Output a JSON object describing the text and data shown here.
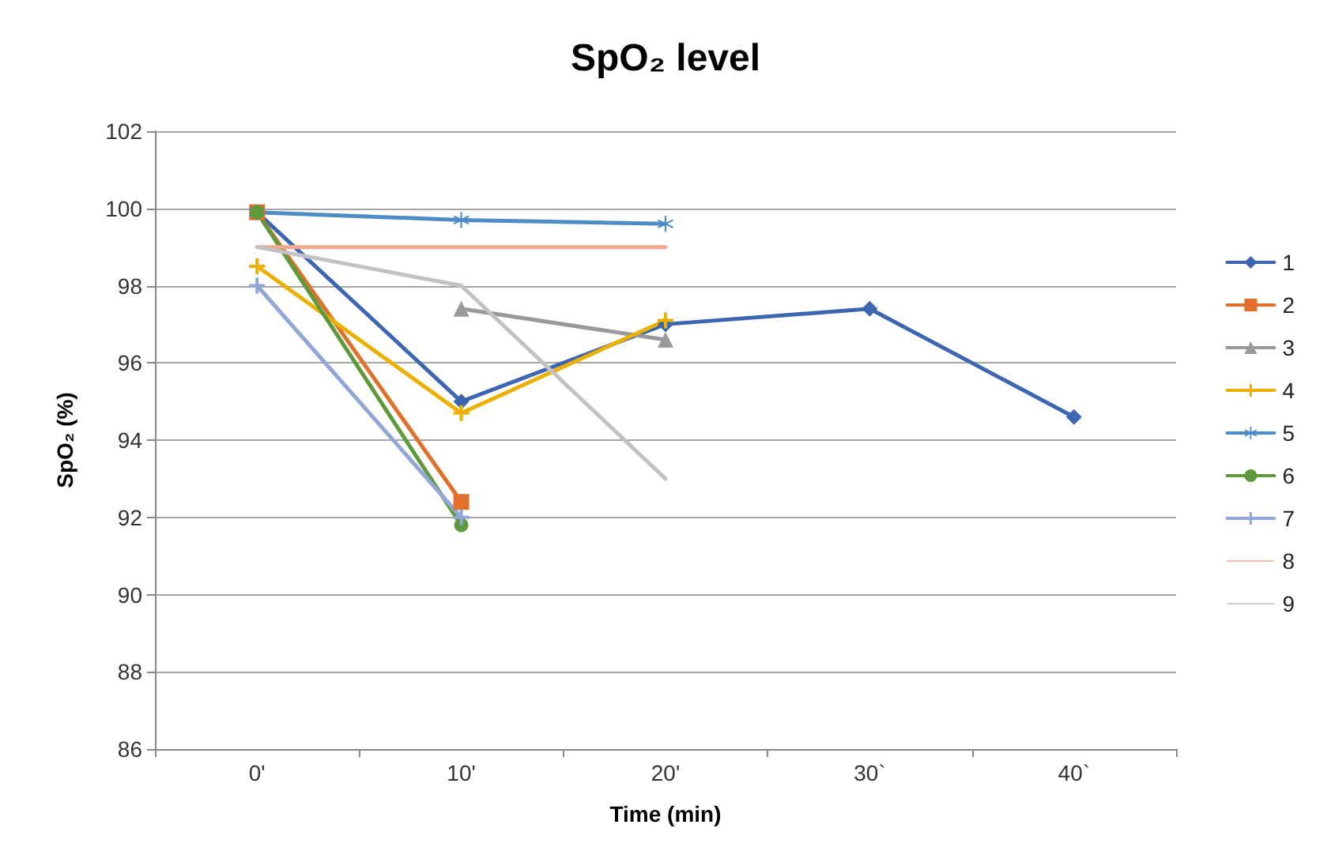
{
  "chart_data": {
    "type": "line",
    "title": "SpO₂ level",
    "xlabel": "Time (min)",
    "ylabel": "SpO₂ (%)",
    "categories": [
      "0'",
      "10'",
      "20'",
      "30`",
      "40`"
    ],
    "ylim": [
      86,
      102
    ],
    "yticks": [
      86,
      88,
      90,
      92,
      94,
      96,
      98,
      100,
      102
    ],
    "grid": "y",
    "legend": "right",
    "line_style": "solid",
    "series": [
      {
        "name": "1",
        "color": "#3c66b0",
        "marker": "diamond",
        "values": [
          99.9,
          95.0,
          97.0,
          97.4,
          94.6
        ]
      },
      {
        "name": "2",
        "color": "#e0702a",
        "marker": "square",
        "values": [
          99.9,
          92.4,
          null,
          null,
          null
        ]
      },
      {
        "name": "3",
        "color": "#999999",
        "marker": "triangle",
        "values": [
          null,
          97.4,
          96.6,
          null,
          null
        ]
      },
      {
        "name": "4",
        "color": "#ecb000",
        "marker": "cross",
        "values": [
          98.5,
          94.7,
          97.1,
          null,
          null
        ]
      },
      {
        "name": "5",
        "color": "#4e8cc6",
        "marker": "star",
        "values": [
          99.9,
          99.7,
          99.6,
          null,
          null
        ]
      },
      {
        "name": "6",
        "color": "#5e9a3c",
        "marker": "circle",
        "values": [
          99.9,
          91.8,
          null,
          null,
          null
        ]
      },
      {
        "name": "7",
        "color": "#93a6d8",
        "marker": "cross",
        "values": [
          98.0,
          92.0,
          null,
          null,
          null
        ]
      },
      {
        "name": "8",
        "color": "#f4a88e",
        "marker": "none",
        "values": [
          99.0,
          99.0,
          99.0,
          null,
          null
        ]
      },
      {
        "name": "9",
        "color": "#c2c2c2",
        "marker": "none",
        "values": [
          99.0,
          98.0,
          93.0,
          null,
          null
        ]
      }
    ]
  }
}
